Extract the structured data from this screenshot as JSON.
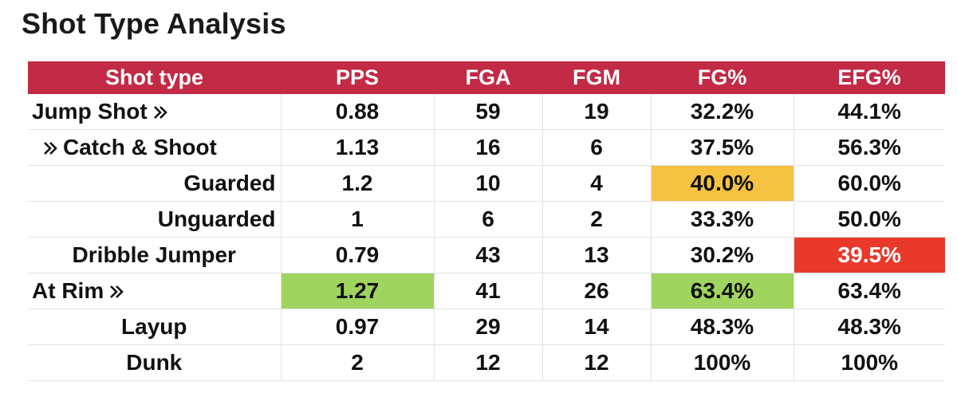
{
  "title": "Shot Type Analysis",
  "chart_data": {
    "type": "table",
    "columns": [
      "Shot type",
      "PPS",
      "FGA",
      "FGM",
      "FG%",
      "EFG%"
    ],
    "rows": [
      {
        "label": "Jump Shot",
        "icon": "double-chevron-right-icon",
        "icon_position": "after",
        "indent": "left",
        "cells": [
          "0.88",
          "59",
          "19",
          "32.2%",
          "44.1%"
        ],
        "highlights": [
          null,
          null,
          null,
          null,
          null
        ]
      },
      {
        "label": "Catch & Shoot",
        "icon": "double-chevron-right-icon",
        "icon_position": "before",
        "indent": "sub",
        "cells": [
          "1.13",
          "16",
          "6",
          "37.5%",
          "56.3%"
        ],
        "highlights": [
          null,
          null,
          null,
          null,
          null
        ]
      },
      {
        "label": "Guarded",
        "icon": "",
        "icon_position": "",
        "indent": "right",
        "cells": [
          "1.2",
          "10",
          "4",
          "40.0%",
          "60.0%"
        ],
        "highlights": [
          null,
          null,
          null,
          "#f5c242",
          null
        ]
      },
      {
        "label": "Unguarded",
        "icon": "",
        "icon_position": "",
        "indent": "right",
        "cells": [
          "1",
          "6",
          "2",
          "33.3%",
          "50.0%"
        ],
        "highlights": [
          null,
          null,
          null,
          null,
          null
        ]
      },
      {
        "label": "Dribble Jumper",
        "icon": "",
        "icon_position": "",
        "indent": "center",
        "cells": [
          "0.79",
          "43",
          "13",
          "30.2%",
          "39.5%"
        ],
        "highlights": [
          null,
          null,
          null,
          null,
          "#e8392b"
        ]
      },
      {
        "label": "At Rim",
        "icon": "double-chevron-right-icon",
        "icon_position": "after",
        "indent": "left",
        "cells": [
          "1.27",
          "41",
          "26",
          "63.4%",
          "63.4%"
        ],
        "highlights": [
          "#9fd45e",
          null,
          null,
          "#9fd45e",
          null
        ]
      },
      {
        "label": "Layup",
        "icon": "",
        "icon_position": "",
        "indent": "center",
        "cells": [
          "0.97",
          "29",
          "14",
          "48.3%",
          "48.3%"
        ],
        "highlights": [
          null,
          null,
          null,
          null,
          null
        ]
      },
      {
        "label": "Dunk",
        "icon": "",
        "icon_position": "",
        "indent": "center",
        "cells": [
          "2",
          "12",
          "12",
          "100%",
          "100%"
        ],
        "highlights": [
          null,
          null,
          null,
          null,
          null
        ]
      }
    ]
  },
  "colors": {
    "header_bg": "#c22a46",
    "header_text": "#ffffff",
    "grid": "#e2e2e2",
    "white_on_red": "#ffffff"
  }
}
